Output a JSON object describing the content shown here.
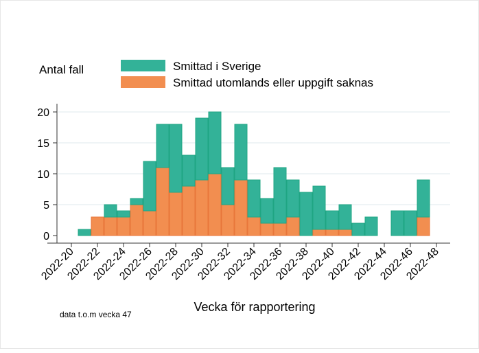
{
  "chart_data": {
    "type": "bar",
    "stacked": true,
    "ylabel": "Antal fall",
    "xlabel": "Vecka för rapportering",
    "note": "data t.o.m vecka 47",
    "categories": [
      "2022-21",
      "2022-22",
      "2022-23",
      "2022-24",
      "2022-25",
      "2022-26",
      "2022-27",
      "2022-28",
      "2022-29",
      "2022-30",
      "2022-31",
      "2022-32",
      "2022-33",
      "2022-34",
      "2022-35",
      "2022-36",
      "2022-37",
      "2022-38",
      "2022-39",
      "2022-40",
      "2022-41",
      "2022-42",
      "2022-43",
      "2022-44",
      "2022-45",
      "2022-46",
      "2022-47"
    ],
    "series": [
      {
        "name": "Smittad utomlands eller uppgift saknas",
        "color": "#f28e50",
        "values": [
          0,
          3,
          3,
          3,
          5,
          4,
          11,
          7,
          8,
          9,
          10,
          5,
          9,
          3,
          2,
          2,
          3,
          0,
          1,
          1,
          1,
          0,
          0,
          0,
          0,
          0,
          3
        ]
      },
      {
        "name": "Smittad i Sverige",
        "color": "#33b298",
        "values": [
          1,
          0,
          2,
          1,
          1,
          8,
          7,
          11,
          5,
          10,
          10,
          6,
          9,
          6,
          4,
          9,
          6,
          7,
          7,
          3,
          4,
          2,
          3,
          0,
          4,
          4,
          6
        ]
      }
    ],
    "legend_order": [
      1,
      0
    ],
    "legend_position": "top",
    "ylim": [
      0,
      21
    ],
    "yticks": [
      0,
      5,
      10,
      15,
      20
    ],
    "xticks": [
      "2022-20",
      "2022-22",
      "2022-24",
      "2022-26",
      "2022-28",
      "2022-30",
      "2022-32",
      "2022-34",
      "2022-36",
      "2022-38",
      "2022-40",
      "2022-42",
      "2022-44",
      "2022-46",
      "2022-48"
    ],
    "grid": true
  }
}
